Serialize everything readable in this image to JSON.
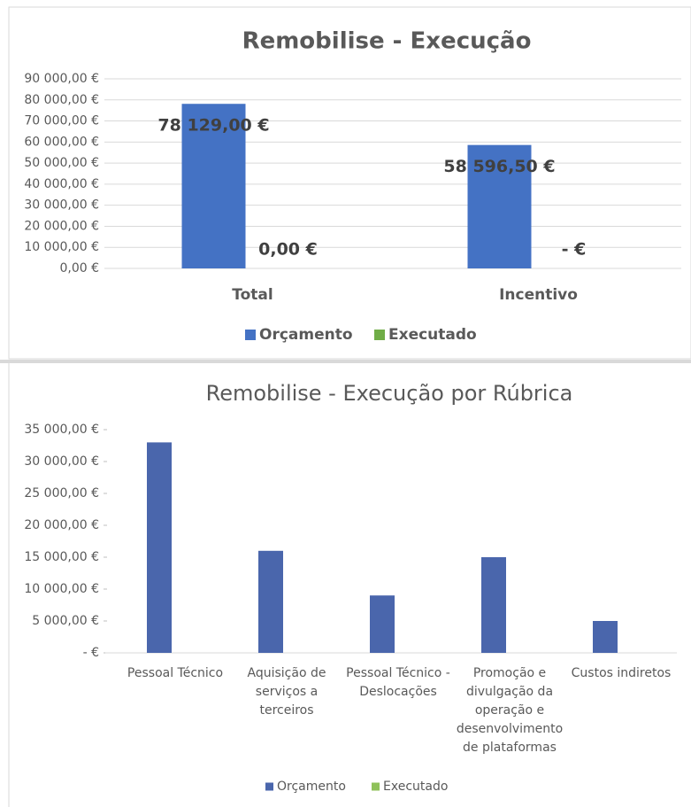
{
  "chart_data": [
    {
      "type": "bar",
      "title": "Remobilise - Execução",
      "categories": [
        "Total",
        "Incentivo"
      ],
      "series": [
        {
          "name": "Orçamento",
          "color": "#4472c4",
          "values": [
            78129,
            58596.5
          ],
          "value_labels": [
            "78 129,00 €",
            "58 596,50 €"
          ]
        },
        {
          "name": "Executado",
          "color": "#70ad47",
          "values": [
            0,
            0
          ],
          "value_labels": [
            "0,00 €",
            "-   €"
          ]
        }
      ],
      "ylim": [
        0,
        90000
      ],
      "yticks": [
        {
          "value": 0,
          "label": "0,00 €"
        },
        {
          "value": 10000,
          "label": "10 000,00 €"
        },
        {
          "value": 20000,
          "label": "20 000,00 €"
        },
        {
          "value": 30000,
          "label": "30 000,00 €"
        },
        {
          "value": 40000,
          "label": "40 000,00 €"
        },
        {
          "value": 50000,
          "label": "50 000,00 €"
        },
        {
          "value": 60000,
          "label": "60 000,00 €"
        },
        {
          "value": 70000,
          "label": "70 000,00 €"
        },
        {
          "value": 80000,
          "label": "80 000,00 €"
        },
        {
          "value": 90000,
          "label": "90 000,00 €"
        }
      ],
      "grid": true,
      "legend": "bottom"
    },
    {
      "type": "bar",
      "title": "Remobilise - Execução por Rúbrica",
      "categories": [
        "Pessoal Técnico",
        "Aquisição de serviços a terceiros",
        "Pessoal Técnico - Deslocações",
        "Promoção e divulgação da operação e desenvolvimento de plataformas",
        "Custos indiretos"
      ],
      "series": [
        {
          "name": "Orçamento",
          "color": "#4a66ac",
          "values": [
            33000,
            16000,
            9000,
            15000,
            5000
          ]
        },
        {
          "name": "Executado",
          "color": "#8fc15a",
          "values": [
            0,
            0,
            0,
            0,
            0
          ]
        }
      ],
      "ylim": [
        0,
        35000
      ],
      "yticks": [
        {
          "value": 0,
          "label": "-   €"
        },
        {
          "value": 5000,
          "label": "5 000,00 €"
        },
        {
          "value": 10000,
          "label": "10 000,00 €"
        },
        {
          "value": 15000,
          "label": "15 000,00 €"
        },
        {
          "value": 20000,
          "label": "20 000,00 €"
        },
        {
          "value": 25000,
          "label": "25 000,00 €"
        },
        {
          "value": 30000,
          "label": "30 000,00 €"
        },
        {
          "value": 35000,
          "label": "35 000,00 €"
        }
      ],
      "grid": false,
      "legend": "bottom"
    }
  ]
}
